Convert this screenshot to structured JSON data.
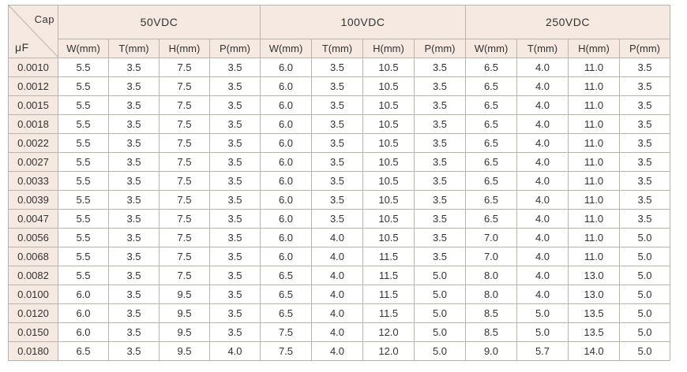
{
  "header": {
    "cap_label": "Cap",
    "unit_label": "μF",
    "groups": [
      "50VDC",
      "100VDC",
      "250VDC"
    ],
    "columns": [
      "W(mm)",
      "T(mm)",
      "H(mm)",
      "P(mm)"
    ]
  },
  "rows": [
    [
      "0.0010",
      "5.5",
      "3.5",
      "7.5",
      "3.5",
      "6.0",
      "3.5",
      "10.5",
      "3.5",
      "6.5",
      "4.0",
      "11.0",
      "3.5"
    ],
    [
      "0.0012",
      "5.5",
      "3.5",
      "7.5",
      "3.5",
      "6.0",
      "3.5",
      "10.5",
      "3.5",
      "6.5",
      "4.0",
      "11.0",
      "3.5"
    ],
    [
      "0.0015",
      "5.5",
      "3.5",
      "7.5",
      "3.5",
      "6.0",
      "3.5",
      "10.5",
      "3.5",
      "6.5",
      "4.0",
      "11.0",
      "3.5"
    ],
    [
      "0.0018",
      "5.5",
      "3.5",
      "7.5",
      "3.5",
      "6.0",
      "3.5",
      "10.5",
      "3.5",
      "6.5",
      "4.0",
      "11.0",
      "3.5"
    ],
    [
      "0.0022",
      "5.5",
      "3.5",
      "7.5",
      "3.5",
      "6.0",
      "3.5",
      "10.5",
      "3.5",
      "6.5",
      "4.0",
      "11.0",
      "3.5"
    ],
    [
      "0.0027",
      "5.5",
      "3.5",
      "7.5",
      "3.5",
      "6.0",
      "3.5",
      "10.5",
      "3.5",
      "6.5",
      "4.0",
      "11.0",
      "3.5"
    ],
    [
      "0.0033",
      "5.5",
      "3.5",
      "7.5",
      "3.5",
      "6.0",
      "3.5",
      "10.5",
      "3.5",
      "6.5",
      "4.0",
      "11.0",
      "3.5"
    ],
    [
      "0.0039",
      "5.5",
      "3.5",
      "7.5",
      "3.5",
      "6.0",
      "3.5",
      "10.5",
      "3.5",
      "6.5",
      "4.0",
      "11.0",
      "3.5"
    ],
    [
      "0.0047",
      "5.5",
      "3.5",
      "7.5",
      "3.5",
      "6.0",
      "3.5",
      "10.5",
      "3.5",
      "6.5",
      "4.0",
      "11.0",
      "3.5"
    ],
    [
      "0.0056",
      "5.5",
      "3.5",
      "7.5",
      "3.5",
      "6.0",
      "4.0",
      "10.5",
      "3.5",
      "7.0",
      "4.0",
      "11.0",
      "5.0"
    ],
    [
      "0.0068",
      "5.5",
      "3.5",
      "7.5",
      "3.5",
      "6.0",
      "4.0",
      "11.5",
      "3.5",
      "7.0",
      "4.0",
      "11.0",
      "5.0"
    ],
    [
      "0.0082",
      "5.5",
      "3.5",
      "7.5",
      "3.5",
      "6.5",
      "4.0",
      "11.5",
      "5.0",
      "8.0",
      "4.0",
      "13.0",
      "5.0"
    ],
    [
      "0.0100",
      "6.0",
      "3.5",
      "9.5",
      "3.5",
      "6.5",
      "4.0",
      "11.5",
      "5.0",
      "8.0",
      "4.0",
      "13.0",
      "5.0"
    ],
    [
      "0.0120",
      "6.0",
      "3.5",
      "9.5",
      "3.5",
      "6.5",
      "4.0",
      "11.5",
      "5.0",
      "8.5",
      "5.0",
      "13.5",
      "5.0"
    ],
    [
      "0.0150",
      "6.0",
      "3.5",
      "9.5",
      "3.5",
      "7.5",
      "4.0",
      "12.0",
      "5.0",
      "8.5",
      "5.0",
      "13.5",
      "5.0"
    ],
    [
      "0.0180",
      "6.5",
      "3.5",
      "9.5",
      "4.0",
      "7.5",
      "4.0",
      "12.0",
      "5.0",
      "9.0",
      "5.7",
      "14.0",
      "5.0"
    ]
  ]
}
